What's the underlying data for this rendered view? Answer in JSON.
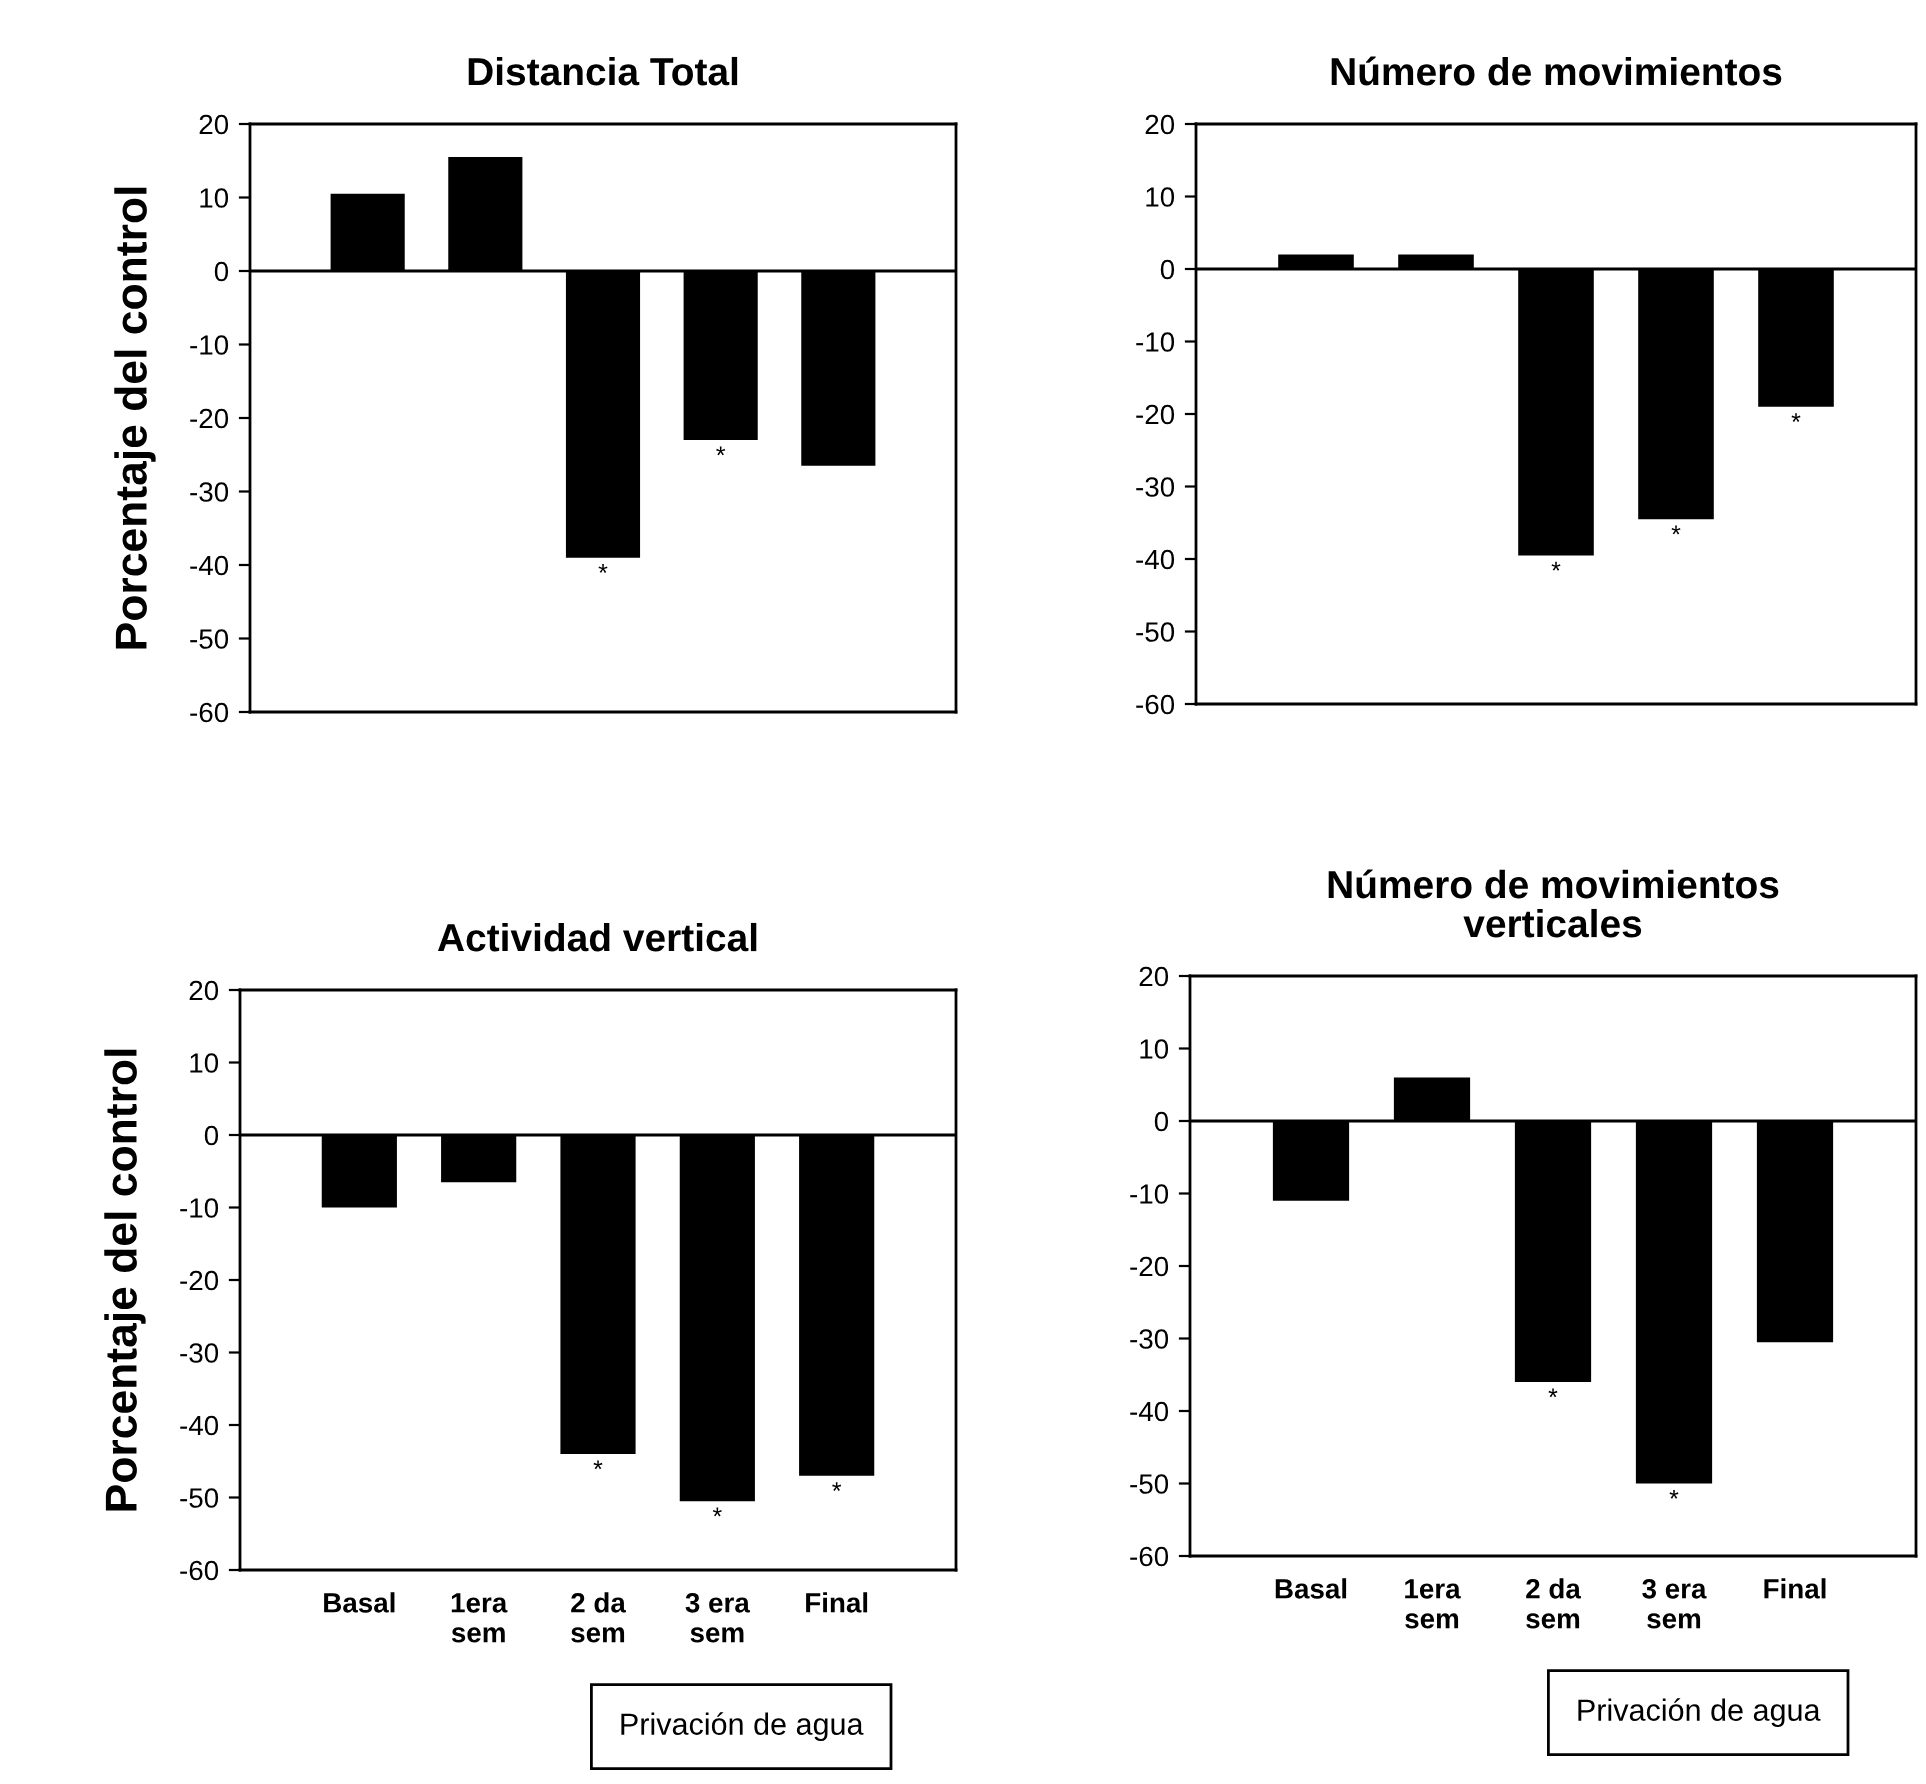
{
  "chart_data": [
    {
      "type": "bar",
      "title": "Distancia Total",
      "ylabel": "Porcentaje del control",
      "categories": [
        null,
        null,
        null,
        null,
        null
      ],
      "values": [
        10.5,
        15.5,
        -39,
        -23,
        -26.5
      ],
      "color": "#000000",
      "value_labels": [
        null,
        null,
        "*",
        "*",
        null
      ],
      "ylim": [
        -60,
        20
      ],
      "yticks": [
        -60,
        -50,
        -40,
        -30,
        -20,
        -10,
        0,
        10,
        20
      ],
      "tick_labels": "y",
      "ref_lines": [
        {
          "axis": "y",
          "value": 0
        }
      ]
    },
    {
      "type": "bar",
      "title": "Número de movimientos",
      "categories": [
        null,
        null,
        null,
        null,
        null
      ],
      "values": [
        2,
        2,
        -39.5,
        -34.5,
        -19
      ],
      "color": "#000000",
      "value_labels": [
        null,
        null,
        "*",
        "*",
        "*"
      ],
      "ylim": [
        -60,
        20
      ],
      "yticks": [
        -60,
        -50,
        -40,
        -30,
        -20,
        -10,
        0,
        10,
        20
      ],
      "tick_labels": "y",
      "ref_lines": [
        {
          "axis": "y",
          "value": 0
        }
      ]
    },
    {
      "type": "bar",
      "title": "Actividad vertical",
      "ylabel": "Porcentaje del control",
      "categories": [
        "Basal",
        "1era\nsem",
        "2 da\nsem",
        "3 era\nsem",
        "Final"
      ],
      "values": [
        -10,
        -6.5,
        -44,
        -50.5,
        -47
      ],
      "color": "#000000",
      "value_labels": [
        null,
        null,
        "*",
        "*",
        "*"
      ],
      "ylim": [
        -60,
        20
      ],
      "yticks": [
        -60,
        -50,
        -40,
        -30,
        -20,
        -10,
        0,
        10,
        20
      ],
      "ref_lines": [
        {
          "axis": "y",
          "value": 0
        }
      ],
      "annotations": [
        "Privación de agua"
      ]
    },
    {
      "type": "bar",
      "title": "Número de movimientos\nverticales",
      "categories": [
        "Basal",
        "1era\nsem",
        "2 da\nsem",
        "3 era\nsem",
        "Final"
      ],
      "values": [
        -11,
        6,
        -36,
        -50,
        -30.5
      ],
      "color": "#000000",
      "value_labels": [
        null,
        null,
        "*",
        "*",
        null
      ],
      "ylim": [
        -60,
        20
      ],
      "yticks": [
        -60,
        -50,
        -40,
        -30,
        -20,
        -10,
        0,
        10,
        20
      ],
      "ref_lines": [
        {
          "axis": "y",
          "value": 0
        }
      ],
      "annotations": [
        "Privación de agua"
      ]
    }
  ]
}
